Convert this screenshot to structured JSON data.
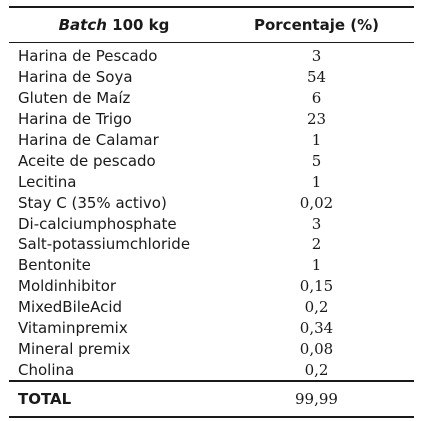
{
  "table": {
    "header": {
      "batch_word": "Batch",
      "batch_rest": " 100 kg",
      "value_label": "Porcentaje (%)"
    },
    "rows": [
      {
        "name": "Harina de Pescado",
        "value": "3"
      },
      {
        "name": "Harina de Soya",
        "value": "54"
      },
      {
        "name": "Gluten de Maíz",
        "value": "6"
      },
      {
        "name": "Harina de Trigo",
        "value": "23"
      },
      {
        "name": "Harina de Calamar",
        "value": "1"
      },
      {
        "name": "Aceite de pescado",
        "value": "5"
      },
      {
        "name": "Lecitina",
        "value": "1"
      },
      {
        "name": "Stay C (35% activo)",
        "value": "0,02"
      },
      {
        "name": "Di-calciumphosphate",
        "value": "3"
      },
      {
        "name": "Salt-potassiumchloride",
        "value": "2"
      },
      {
        "name": "Bentonite",
        "value": "1"
      },
      {
        "name": "Moldinhibitor",
        "value": "0,15"
      },
      {
        "name": "MixedBileAcid",
        "value": "0,2"
      },
      {
        "name": "Vitaminpremix",
        "value": "0,34"
      },
      {
        "name": "Mineral premix",
        "value": "0,08"
      },
      {
        "name": "Cholina",
        "value": "0,2"
      }
    ],
    "total": {
      "label": "TOTAL",
      "value": "99,99"
    }
  }
}
